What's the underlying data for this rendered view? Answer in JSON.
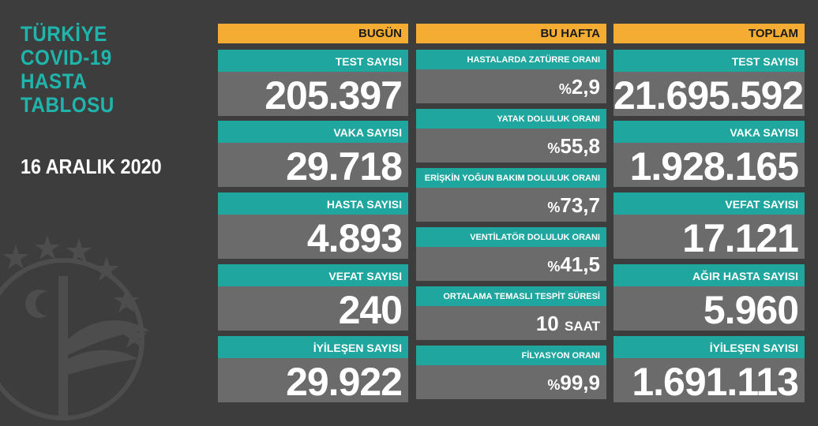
{
  "title": {
    "lines": [
      "TÜRKİYE",
      "COVID-19",
      "HASTA",
      "TABLOSU"
    ]
  },
  "date": "16 ARALIK 2020",
  "today": {
    "header": "BUGÜN",
    "cards": [
      {
        "label": "TEST SAYISI",
        "value": "205.397"
      },
      {
        "label": "VAKA SAYISI",
        "value": "29.718"
      },
      {
        "label": "HASTA SAYISI",
        "value": "4.893"
      },
      {
        "label": "VEFAT SAYISI",
        "value": "240"
      },
      {
        "label": "İYİLEŞEN SAYISI",
        "value": "29.922"
      }
    ]
  },
  "week": {
    "header": "BU HAFTA",
    "cards": [
      {
        "label": "HASTALARDA ZATÜRRE ORANI",
        "prefix": "%",
        "value": "2,9"
      },
      {
        "label": "YATAK DOLULUK ORANI",
        "prefix": "%",
        "value": "55,8"
      },
      {
        "label": "ERİŞKİN YOĞUN BAKIM DOLULUK ORANI",
        "prefix": "%",
        "value": "73,7"
      },
      {
        "label": "VENTİLATÖR DOLULUK ORANI",
        "prefix": "%",
        "value": "41,5"
      },
      {
        "label": "ORTALAMA TEMASLI TESPİT SÜRESİ",
        "value": "10",
        "suffix": "SAAT"
      },
      {
        "label": "FİLYASYON ORANI",
        "prefix": "%",
        "value": "99,9"
      }
    ]
  },
  "total": {
    "header": "TOPLAM",
    "cards": [
      {
        "label": "TEST SAYISI",
        "value": "21.695.592"
      },
      {
        "label": "VAKA SAYISI",
        "value": "1.928.165"
      },
      {
        "label": "VEFAT SAYISI",
        "value": "17.121"
      },
      {
        "label": "AĞIR HASTA SAYISI",
        "value": "5.960"
      },
      {
        "label": "İYİLEŞEN SAYISI",
        "value": "1.691.113"
      }
    ]
  },
  "colors": {
    "background": "#3d3d3d",
    "accent_teal": "#1fa69e",
    "header_orange": "#f5ac32",
    "value_gray": "#6b6b6b"
  },
  "icons": [
    "ministry-emblem-icon"
  ]
}
